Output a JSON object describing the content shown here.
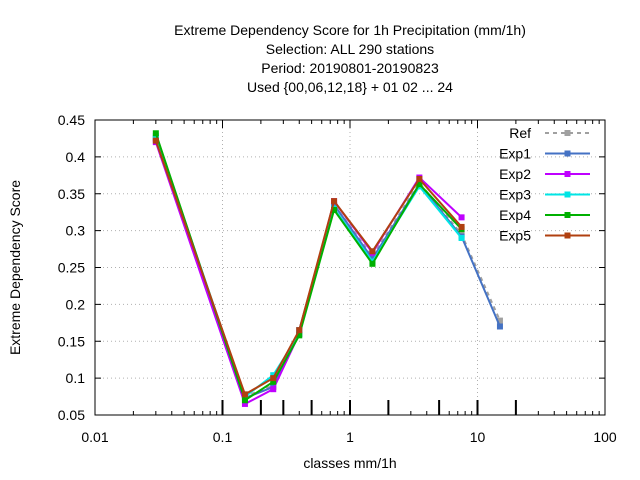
{
  "chart_data": {
    "type": "line",
    "title_lines": [
      "Extreme Dependency Score  for 1h Precipitation (mm/1h)",
      "Selection: ALL     290 stations",
      "Period: 20190801-20190823",
      "Used {00,06,12,18} + 01 02 ... 24"
    ],
    "xlabel": "classes mm/1h",
    "ylabel": "Extreme Dependency Score",
    "x_scale": "log",
    "xlim": [
      0.01,
      100
    ],
    "ylim": [
      0.05,
      0.45
    ],
    "x_ticks": [
      0.01,
      0.1,
      1,
      10,
      100
    ],
    "x_tick_labels": [
      "0.01",
      "0.1",
      "1",
      "10",
      "100"
    ],
    "y_ticks": [
      0.05,
      0.1,
      0.15,
      0.2,
      0.25,
      0.3,
      0.35,
      0.4,
      0.45
    ],
    "y_tick_labels": [
      "0.05",
      "0.1",
      "0.15",
      "0.2",
      "0.25",
      "0.3",
      "0.35",
      "0.4",
      "0.45"
    ],
    "class_markers": [
      0.1,
      0.2,
      0.3,
      0.5,
      1,
      2,
      5,
      10,
      20
    ],
    "grid": true,
    "legend_position": "top-right",
    "series": [
      {
        "name": "Ref",
        "color": "#a0a0a0",
        "dashed": true,
        "x": [
          0.03,
          0.15,
          0.25,
          0.4,
          0.75,
          1.5,
          3.5,
          7.5,
          15
        ],
        "y": [
          0.425,
          0.075,
          0.09,
          0.165,
          0.335,
          0.265,
          0.365,
          0.295,
          0.178
        ]
      },
      {
        "name": "Exp1",
        "color": "#4472c4",
        "dashed": false,
        "x": [
          0.03,
          0.15,
          0.25,
          0.4,
          0.75,
          1.5,
          3.5,
          7.5,
          15
        ],
        "y": [
          0.425,
          0.073,
          0.088,
          0.165,
          0.335,
          0.262,
          0.363,
          0.292,
          0.17
        ]
      },
      {
        "name": "Exp2",
        "color": "#bf00ff",
        "dashed": false,
        "x": [
          0.03,
          0.15,
          0.25,
          0.4,
          0.75,
          1.5,
          3.5,
          7.5
        ],
        "y": [
          0.42,
          0.065,
          0.085,
          0.16,
          0.34,
          0.27,
          0.372,
          0.318
        ]
      },
      {
        "name": "Exp3",
        "color": "#00e5e5",
        "dashed": false,
        "x": [
          0.03,
          0.15,
          0.25,
          0.4,
          0.75,
          1.5,
          3.5,
          7.5
        ],
        "y": [
          0.428,
          0.075,
          0.104,
          0.16,
          0.33,
          0.258,
          0.36,
          0.29
        ]
      },
      {
        "name": "Exp4",
        "color": "#00b000",
        "dashed": false,
        "x": [
          0.03,
          0.15,
          0.25,
          0.4,
          0.75,
          1.5,
          3.5,
          7.5
        ],
        "y": [
          0.432,
          0.07,
          0.095,
          0.158,
          0.328,
          0.255,
          0.363,
          0.302
        ]
      },
      {
        "name": "Exp5",
        "color": "#b04010",
        "dashed": false,
        "x": [
          0.03,
          0.15,
          0.25,
          0.4,
          0.75,
          1.5,
          3.5,
          7.5
        ],
        "y": [
          0.422,
          0.078,
          0.1,
          0.165,
          0.34,
          0.272,
          0.37,
          0.305
        ]
      }
    ]
  }
}
